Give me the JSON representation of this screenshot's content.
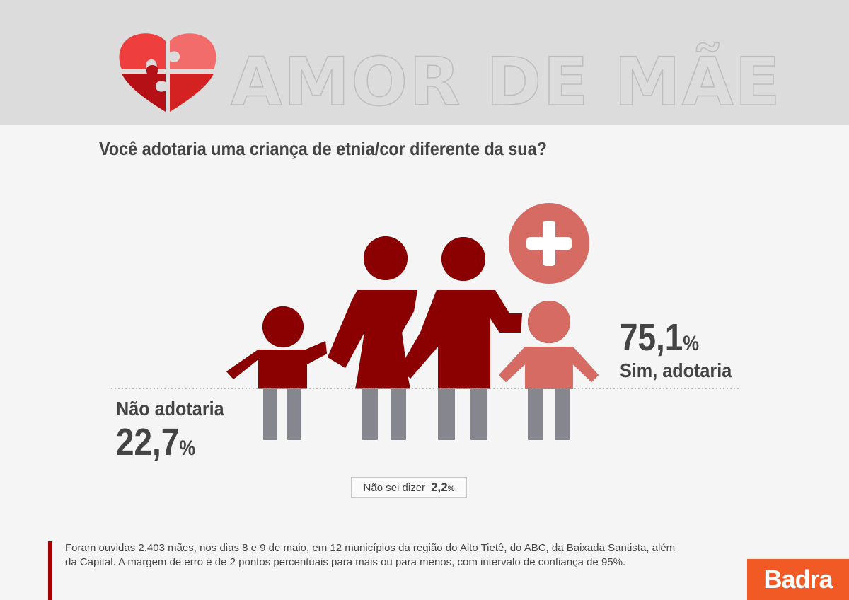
{
  "header": {
    "title": "AMOR DE MÃE",
    "icon": "puzzle-heart-icon",
    "colors": {
      "heart_light": "#ef3e3e",
      "heart_pink": "#f26c6c",
      "heart_dark": "#b51016",
      "background": "#dcdcdc"
    }
  },
  "chart_data": {
    "type": "pictogram",
    "title": "Você adotaria uma criança de etnia/cor diferente da sua?",
    "categories": [
      "Sim, adotaria",
      "Não adotaria",
      "Não sei dizer"
    ],
    "values": [
      75.1,
      22.7,
      2.2
    ],
    "value_labels": [
      "75,1",
      "22,7",
      "2,2"
    ],
    "unit": "%",
    "colors": {
      "sim": "#8b0000",
      "nao": "#86868e",
      "adopted_child": "#d56b63",
      "plus_badge": "#d56b63"
    }
  },
  "footnote": {
    "text": "Foram ouvidas 2.403 mães, nos dias 8 e 9 de maio, em 12 municípios da região do Alto Tietê, do ABC, da Baixada Santista, além da Capital. A margem de erro é de 2 pontos percentuais para mais ou para menos, com intervalo de confiança de 95%."
  },
  "logo": {
    "text": "Badra",
    "color": "#f15a24"
  }
}
